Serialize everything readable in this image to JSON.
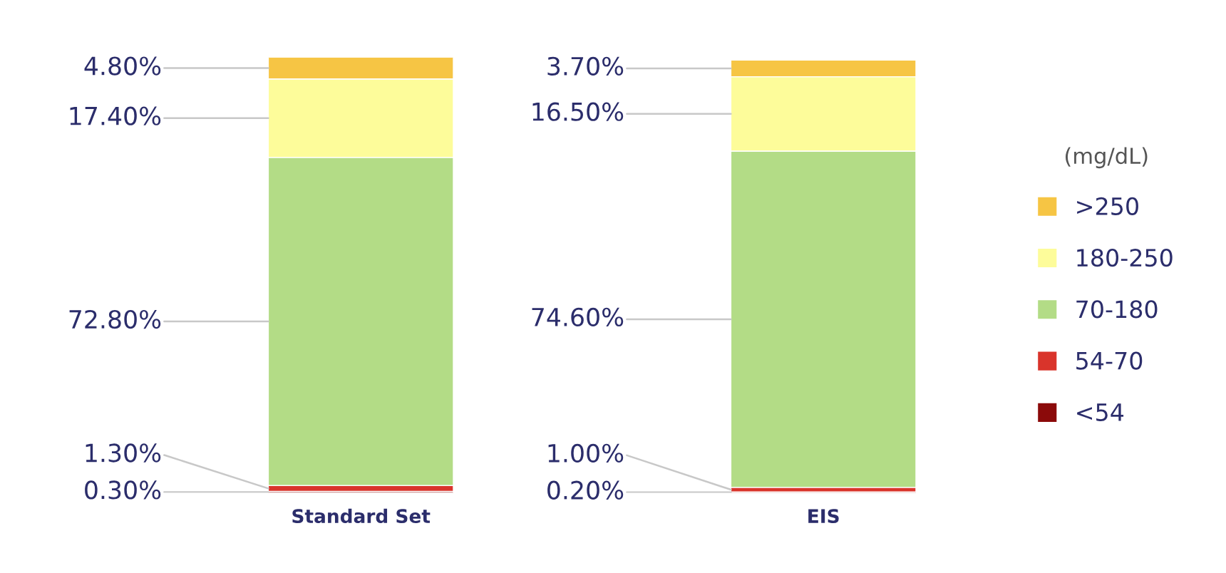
{
  "chart_data": {
    "type": "bar",
    "stacked": true,
    "categories": [
      "Standard Set",
      "EIS"
    ],
    "legend_title": "(mg/dL)",
    "legend": "right",
    "grid": false,
    "series": [
      {
        "name": "<54",
        "color": "#8b0a0a",
        "values": [
          0.3,
          0.2
        ],
        "value_labels": [
          "0.30%",
          "0.20%"
        ]
      },
      {
        "name": "54-70",
        "color": "#d9342b",
        "values": [
          1.3,
          1.0
        ],
        "value_labels": [
          "1.30%",
          "1.00%"
        ]
      },
      {
        "name": "70-180",
        "color": "#b3dc86",
        "values": [
          72.8,
          74.6
        ],
        "value_labels": [
          "72.80%",
          "74.60%"
        ]
      },
      {
        "name": "180-250",
        "color": "#fdfc9a",
        "values": [
          17.4,
          16.5
        ],
        "value_labels": [
          "17.40%",
          "16.50%"
        ]
      },
      {
        "name": ">250",
        "color": "#f6c544",
        "values": [
          4.8,
          3.7
        ],
        "value_labels": [
          "4.80%",
          "3.70%"
        ]
      }
    ]
  }
}
